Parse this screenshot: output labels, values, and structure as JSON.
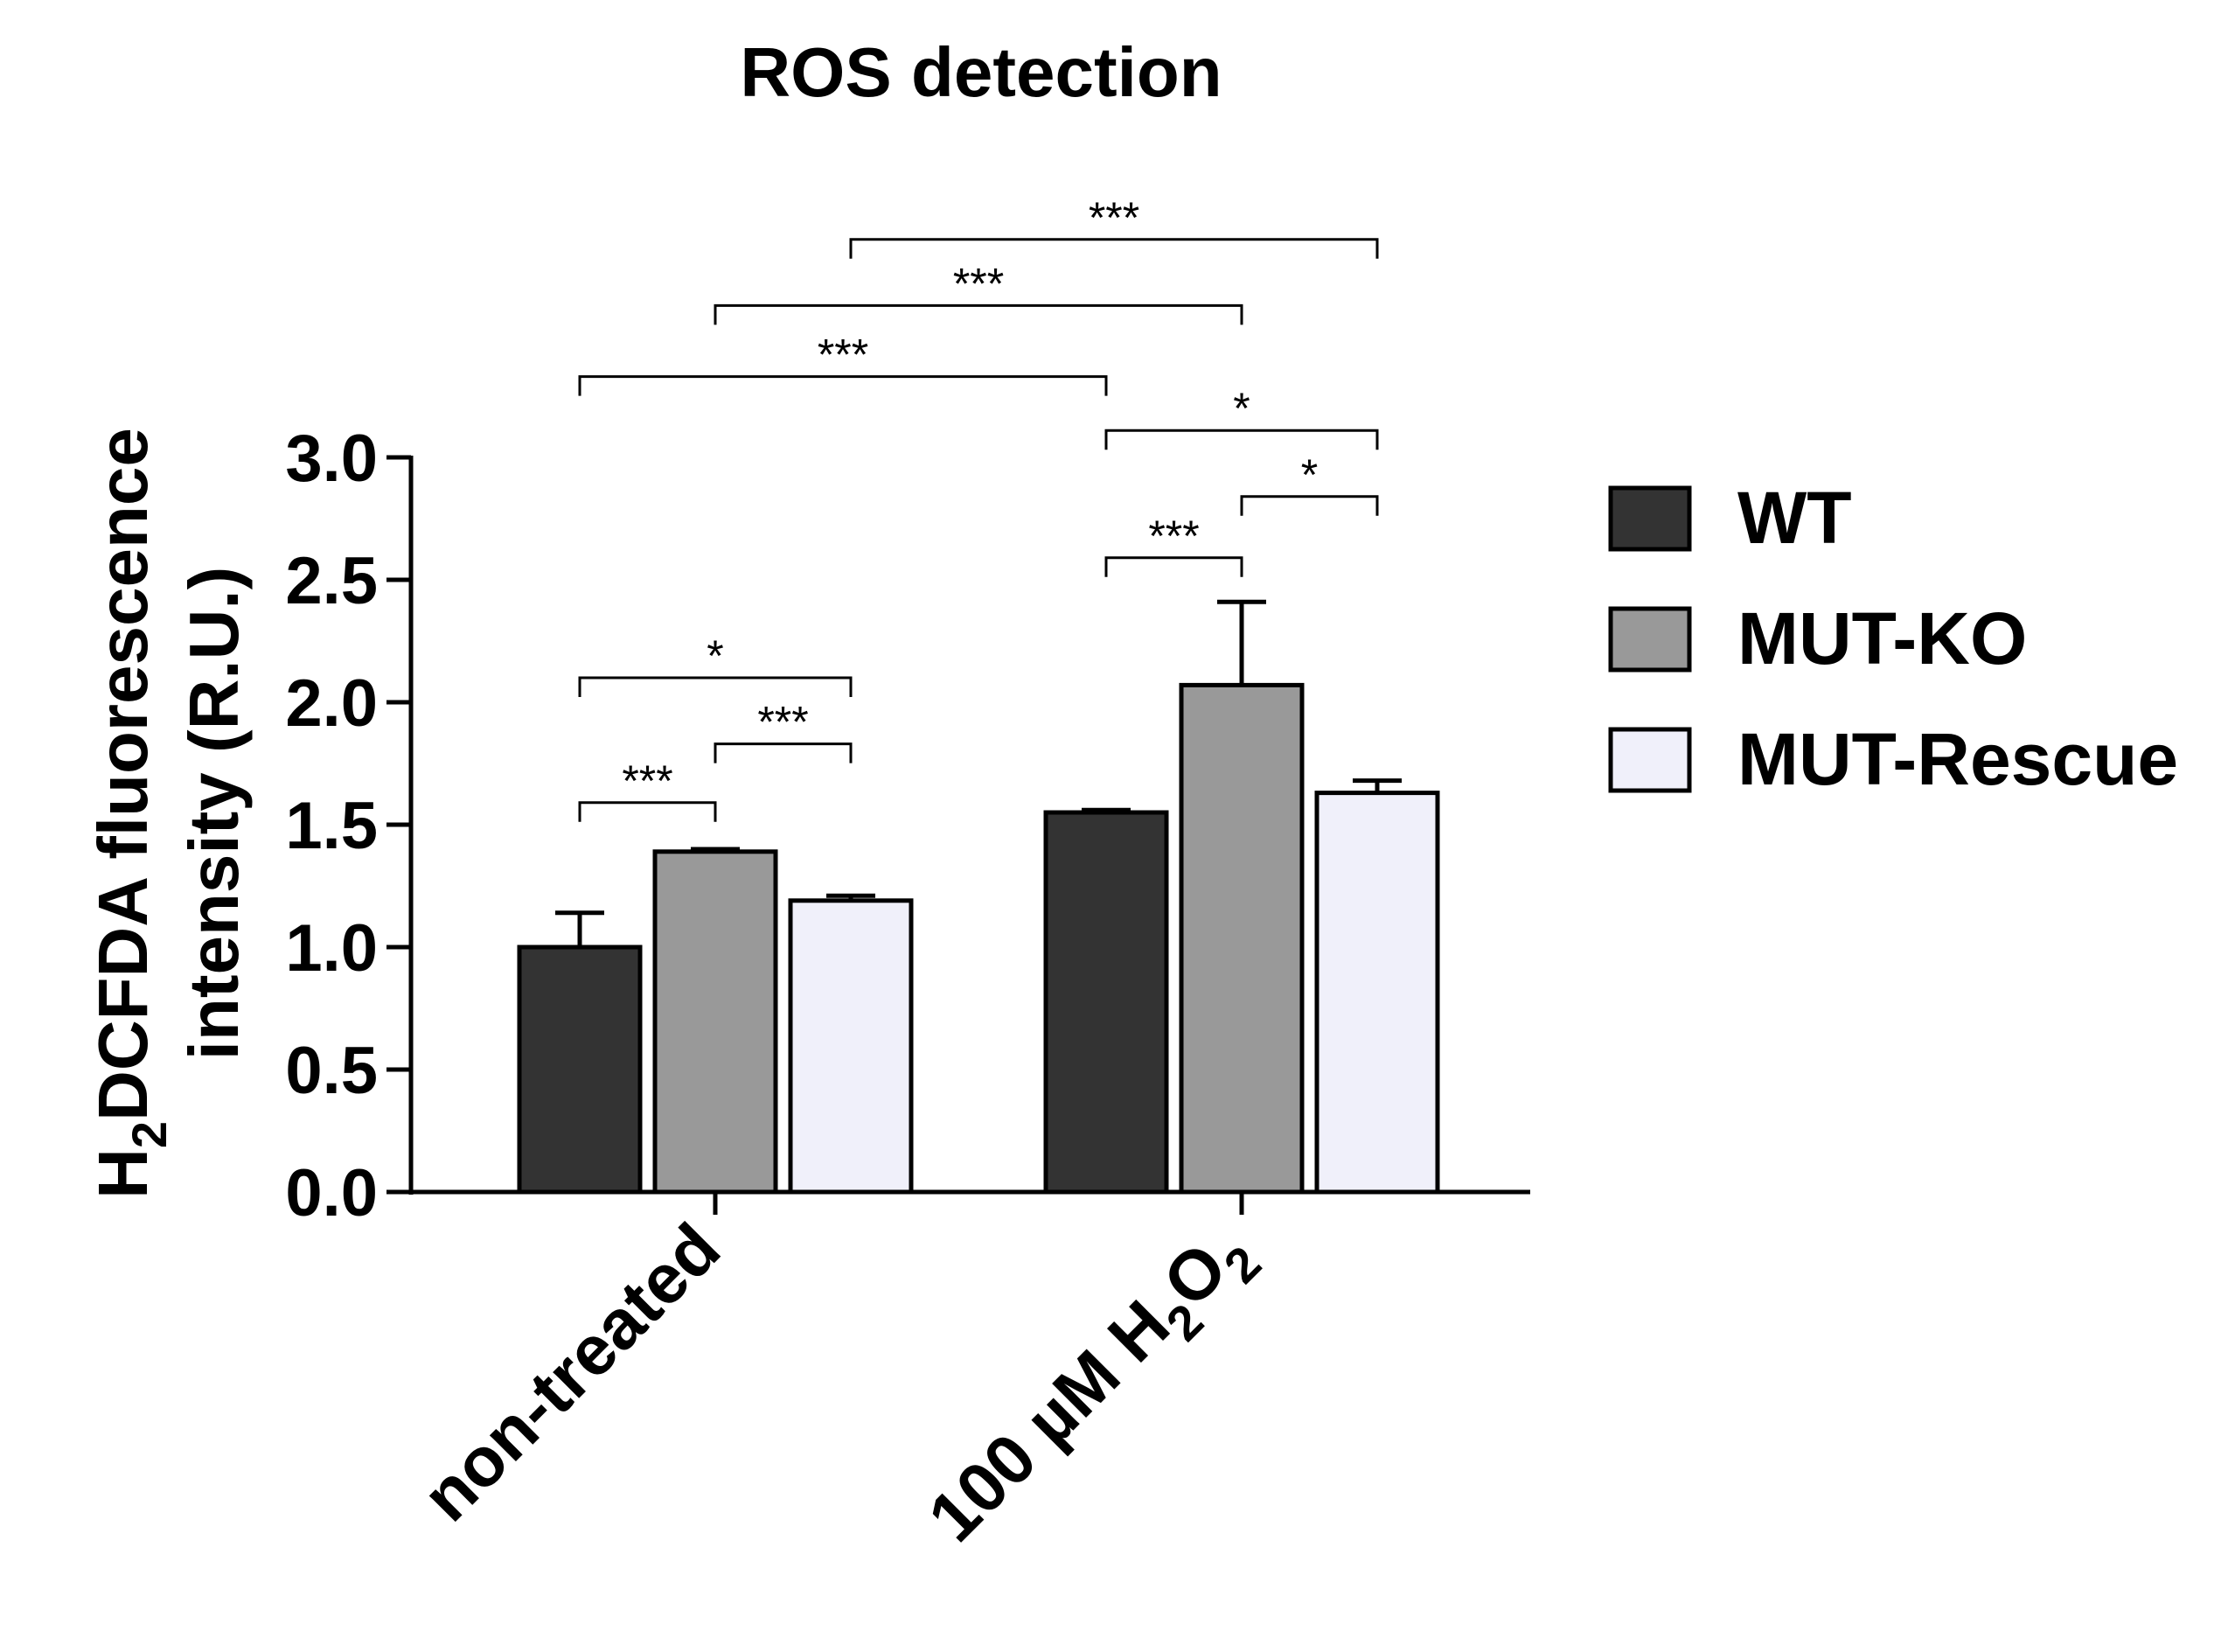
{
  "chart_data": {
    "type": "bar",
    "title": "ROS detection",
    "ylabel": {
      "line1_prefix": "H",
      "line1_subscript": "2",
      "line1_rest": "DCFDA fluorescence",
      "line2": "intensity (R.U.)"
    },
    "xlabel": "",
    "ylim": [
      0,
      3.0
    ],
    "yticks": [
      "0.0",
      "0.5",
      "1.0",
      "1.5",
      "2.0",
      "2.5",
      "3.0"
    ],
    "categories": [
      {
        "main": "non-treated",
        "sub": "",
        "tail": ""
      },
      {
        "main": "100 µM H",
        "sub": "2",
        "mid": "O",
        "sub2": "2"
      }
    ],
    "series": [
      {
        "name": "WT",
        "color": "#333333",
        "values": [
          1.0,
          1.55
        ],
        "errors": [
          0.14,
          0.01
        ]
      },
      {
        "name": "MUT-KO",
        "color": "#999999",
        "values": [
          1.39,
          2.07
        ],
        "errors": [
          0.01,
          0.34
        ]
      },
      {
        "name": "MUT-Rescue",
        "color": "#f0f0fa",
        "values": [
          1.19,
          1.63
        ],
        "errors": [
          0.02,
          0.05
        ]
      }
    ],
    "significance": [
      {
        "from": {
          "cat": 0,
          "series": 0
        },
        "to": {
          "cat": 0,
          "series": 1
        },
        "level": 1.59,
        "label": "***"
      },
      {
        "from": {
          "cat": 0,
          "series": 1
        },
        "to": {
          "cat": 0,
          "series": 2
        },
        "level": 1.83,
        "label": "***"
      },
      {
        "from": {
          "cat": 0,
          "series": 0
        },
        "to": {
          "cat": 0,
          "series": 2
        },
        "level": 2.1,
        "label": "*"
      },
      {
        "from": {
          "cat": 1,
          "series": 0
        },
        "to": {
          "cat": 1,
          "series": 1
        },
        "level": 2.59,
        "label": "***"
      },
      {
        "from": {
          "cat": 1,
          "series": 1
        },
        "to": {
          "cat": 1,
          "series": 2
        },
        "level": 2.84,
        "label": "*"
      },
      {
        "from": {
          "cat": 1,
          "series": 0
        },
        "to": {
          "cat": 1,
          "series": 2
        },
        "level": 3.11,
        "label": "*"
      },
      {
        "from": {
          "cat": 0,
          "series": 0
        },
        "to": {
          "cat": 1,
          "series": 0
        },
        "level": 3.33,
        "label": "***"
      },
      {
        "from": {
          "cat": 0,
          "series": 1
        },
        "to": {
          "cat": 1,
          "series": 1
        },
        "level": 3.62,
        "label": "***"
      },
      {
        "from": {
          "cat": 0,
          "series": 2
        },
        "to": {
          "cat": 1,
          "series": 2
        },
        "level": 3.89,
        "label": "***"
      }
    ]
  }
}
